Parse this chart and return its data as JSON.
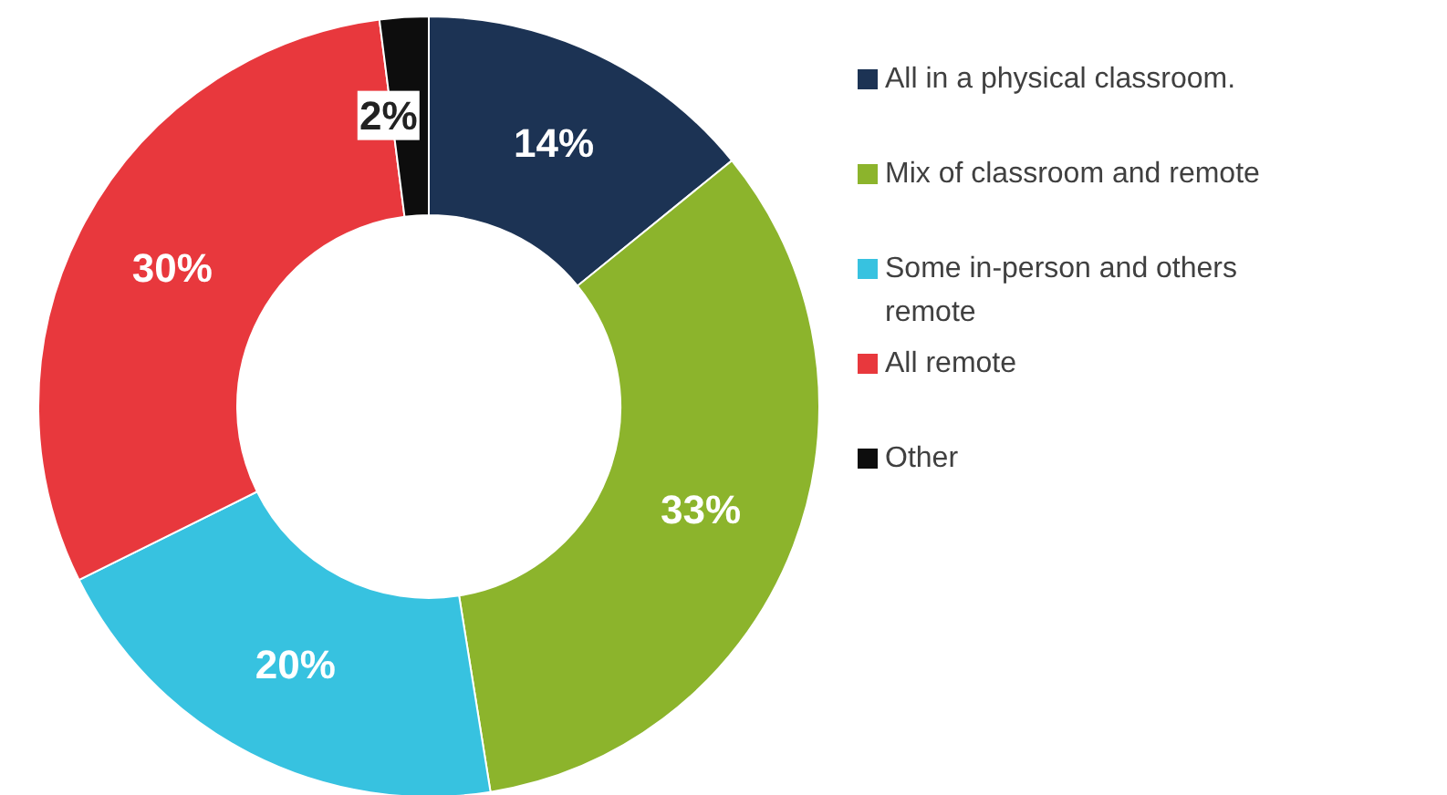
{
  "chart_data": {
    "type": "donut",
    "categories": [
      "All in a physical classroom.",
      "Mix of classroom and remote",
      "Some in-person and others remote",
      "All remote",
      "Other"
    ],
    "values": [
      14,
      33,
      20,
      30,
      2
    ],
    "colors": [
      "#1c3354",
      "#8cb42c",
      "#37c2e0",
      "#e8383d",
      "#0d0d0d"
    ],
    "value_labels": [
      "14%",
      "33%",
      "20%",
      "30%",
      "2%"
    ],
    "legend": "right"
  }
}
